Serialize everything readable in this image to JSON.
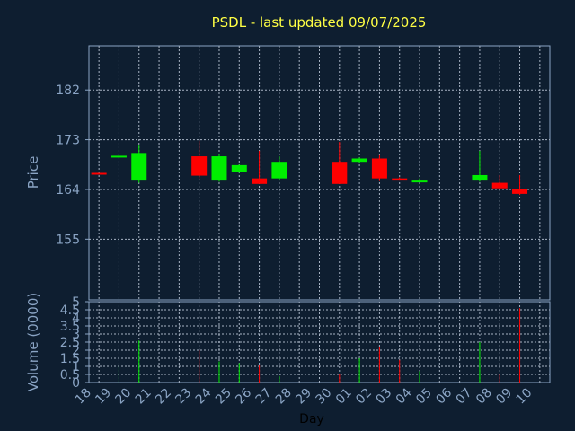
{
  "chart_data": {
    "type": "candlestick",
    "title": "PSDL - last updated 09/07/2025",
    "xlabel": "Day",
    "x_ticks": [
      "18",
      "19",
      "20",
      "21",
      "22",
      "23",
      "24",
      "25",
      "26",
      "27",
      "28",
      "29",
      "30",
      "01",
      "02",
      "03",
      "04",
      "05",
      "06",
      "07",
      "08",
      "09",
      "10"
    ],
    "price": {
      "ylabel": "Price",
      "ylim": [
        144,
        190
      ],
      "y_ticks": [
        155,
        164,
        173,
        182
      ],
      "candles": [
        {
          "day": "18",
          "open": 167.0,
          "high": 167.0,
          "low": 166.8,
          "close": 166.8
        },
        {
          "day": "19",
          "open": 170.1,
          "high": 170.4,
          "low": 169.8,
          "close": 170.1
        },
        {
          "day": "20",
          "open": 165.6,
          "high": 172.0,
          "low": 165.2,
          "close": 170.6
        },
        {
          "day": "23",
          "open": 170.0,
          "high": 172.8,
          "low": 166.0,
          "close": 166.5
        },
        {
          "day": "24",
          "open": 165.6,
          "high": 170.3,
          "low": 165.4,
          "close": 170.0
        },
        {
          "day": "25",
          "open": 167.2,
          "high": 168.5,
          "low": 167.0,
          "close": 168.4
        },
        {
          "day": "26",
          "open": 166.0,
          "high": 171.0,
          "low": 165.0,
          "close": 165.0
        },
        {
          "day": "27",
          "open": 166.0,
          "high": 170.0,
          "low": 165.6,
          "close": 169.0
        },
        {
          "day": "30",
          "open": 169.0,
          "high": 172.6,
          "low": 165.0,
          "close": 165.0
        },
        {
          "day": "01",
          "open": 169.0,
          "high": 169.8,
          "low": 168.8,
          "close": 169.6
        },
        {
          "day": "02",
          "open": 169.6,
          "high": 170.2,
          "low": 165.5,
          "close": 166.0
        },
        {
          "day": "03",
          "open": 166.0,
          "high": 166.2,
          "low": 165.6,
          "close": 165.6
        },
        {
          "day": "04",
          "open": 165.5,
          "high": 166.0,
          "low": 165.4,
          "close": 165.6
        },
        {
          "day": "07",
          "open": 165.6,
          "high": 171.0,
          "low": 165.4,
          "close": 166.6
        },
        {
          "day": "08",
          "open": 165.2,
          "high": 166.6,
          "low": 164.0,
          "close": 164.2
        },
        {
          "day": "09",
          "open": 164.0,
          "high": 166.6,
          "low": 163.0,
          "close": 163.2
        }
      ]
    },
    "volume": {
      "ylabel": "Volume (0000)",
      "ylim": [
        0,
        5
      ],
      "y_ticks": [
        "0",
        "0.5",
        "1",
        "1.5",
        "2",
        "2.5",
        "3",
        "3.5",
        "4",
        "4.5",
        "5"
      ],
      "bars": [
        {
          "day": "18",
          "value": 0.0,
          "direction": "up"
        },
        {
          "day": "19",
          "value": 1.0,
          "direction": "up"
        },
        {
          "day": "20",
          "value": 2.6,
          "direction": "up"
        },
        {
          "day": "23",
          "value": 2.0,
          "direction": "down"
        },
        {
          "day": "24",
          "value": 1.3,
          "direction": "up"
        },
        {
          "day": "25",
          "value": 1.2,
          "direction": "up"
        },
        {
          "day": "26",
          "value": 1.1,
          "direction": "down"
        },
        {
          "day": "27",
          "value": 0.4,
          "direction": "up"
        },
        {
          "day": "30",
          "value": 0.5,
          "direction": "down"
        },
        {
          "day": "01",
          "value": 1.5,
          "direction": "up"
        },
        {
          "day": "02",
          "value": 2.2,
          "direction": "down"
        },
        {
          "day": "03",
          "value": 1.4,
          "direction": "down"
        },
        {
          "day": "04",
          "value": 0.7,
          "direction": "up"
        },
        {
          "day": "07",
          "value": 2.5,
          "direction": "up"
        },
        {
          "day": "08",
          "value": 0.5,
          "direction": "down"
        },
        {
          "day": "09",
          "value": 4.6,
          "direction": "down"
        }
      ]
    },
    "grid": true,
    "colors": {
      "background": "#0e1e30",
      "up": "#00ee00",
      "down": "#ff0000",
      "title": "#ffff44",
      "tick": "#8aa4c4",
      "axis": "#8aa4c4",
      "grid": "#a8b4c4"
    }
  }
}
